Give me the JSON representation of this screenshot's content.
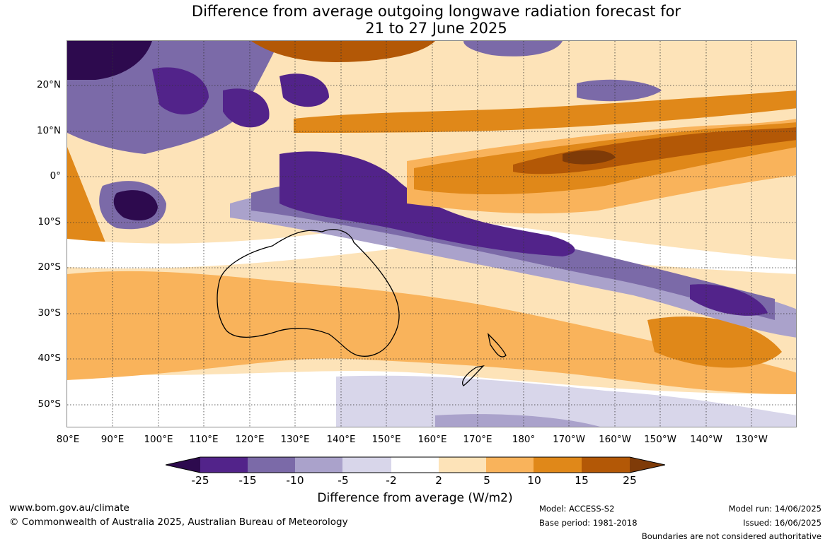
{
  "title_line1": "Difference from average outgoing longwave radiation forecast for",
  "title_line2": "21 to 27 June 2025",
  "latitudes": [
    "20°N",
    "10°N",
    "0°",
    "10°S",
    "20°S",
    "30°S",
    "40°S",
    "50°S"
  ],
  "longitudes": [
    "80°E",
    "90°E",
    "100°E",
    "110°E",
    "120°E",
    "130°E",
    "140°E",
    "150°E",
    "160°E",
    "170°E",
    "180°",
    "170°W",
    "160°W",
    "150°W",
    "140°W",
    "130°W"
  ],
  "colorbar": {
    "ticks": [
      "-25",
      "-15",
      "-10",
      "-5",
      "-2",
      "2",
      "5",
      "10",
      "15",
      "25"
    ],
    "colors": [
      "#2d0a4e",
      "#52238a",
      "#7b6aa8",
      "#aaa2cb",
      "#d8d6ea",
      "#ffffff",
      "#fde3b8",
      "#f9b35b",
      "#e08819",
      "#b35806",
      "#7f3b08"
    ],
    "label": "Difference from average (W/m2)"
  },
  "footer": {
    "website": "www.bom.gov.au/climate",
    "copyright": "© Commonwealth of Australia 2025, Australian Bureau of Meteorology",
    "model": "Model: ACCESS-S2",
    "base_period": "Base period: 1981-2018",
    "model_run": "Model run: 14/06/2025",
    "issued": "Issued: 16/06/2025",
    "disclaimer": "Boundaries are not considered authoritative"
  }
}
